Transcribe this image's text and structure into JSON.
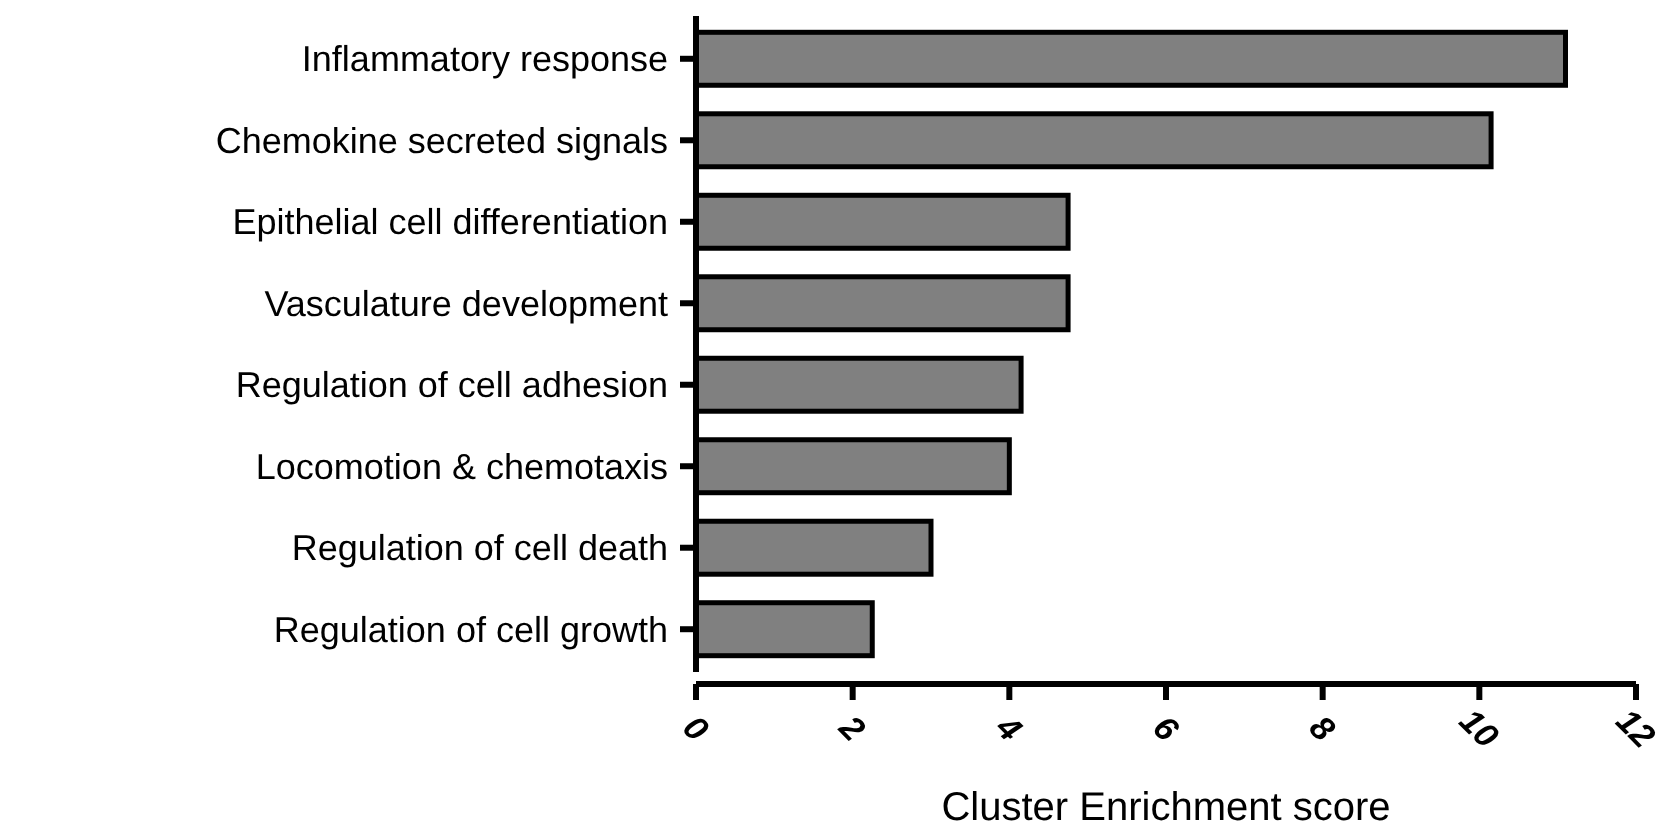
{
  "chart_data": {
    "type": "bar",
    "orientation": "horizontal",
    "xlabel": "Cluster Enrichment score",
    "categories": [
      "Inflammatory response",
      "Chemokine secreted signals",
      "Epithelial cell differentiation",
      "Vasculature development",
      "Regulation of cell adhesion",
      "Locomotion & chemotaxis",
      "Regulation of cell death",
      "Regulation of cell growth"
    ],
    "values": [
      11.1,
      10.15,
      4.75,
      4.75,
      4.15,
      4.0,
      3.0,
      2.25
    ],
    "color": "#808080",
    "xlim": [
      0,
      12
    ],
    "xticks": [
      0,
      2,
      4,
      6,
      8,
      10,
      12
    ],
    "grid": false
  }
}
